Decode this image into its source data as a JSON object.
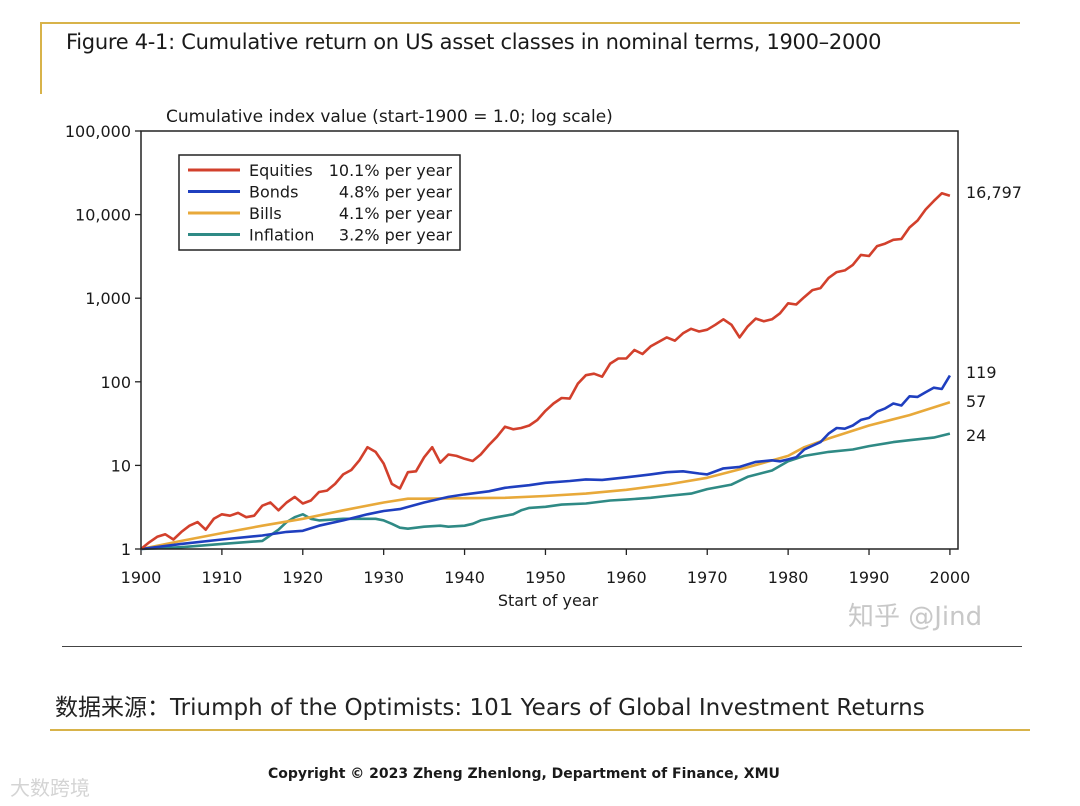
{
  "figure_title": "Figure 4-1: Cumulative return on US asset classes in nominal terms, 1900–2000",
  "source_note": "数据来源：Triumph of the Optimists: 101 Years of Global Investment Returns",
  "copyright": "Copyright © 2023 Zheng Zhenlong, Department of Finance,  XMU",
  "watermarks": {
    "zhihu": "知乎 @Jind",
    "bottom_left": "大数跨境"
  },
  "chart_data": {
    "type": "line",
    "title": "Figure 4-1: Cumulative return on US asset classes in nominal terms, 1900–2000",
    "ylabel": "Cumulative index value (start-1900 = 1.0; log scale)",
    "xlabel": "Start of year",
    "yscale": "log",
    "ylim": [
      1,
      100000
    ],
    "xlim": [
      1900,
      2001
    ],
    "x_ticks": [
      1900,
      1910,
      1920,
      1930,
      1940,
      1950,
      1960,
      1970,
      1980,
      1990,
      2000
    ],
    "y_ticks": [
      1,
      10,
      100,
      1000,
      10000,
      100000
    ],
    "y_tick_labels": [
      "1",
      "10",
      "100",
      "1,000",
      "10,000",
      "100,000"
    ],
    "legend_position": "top-left",
    "series": [
      {
        "name": "Equities",
        "rate": "10.1% per year",
        "color": "#d2402c",
        "end_label": "16,797",
        "points": [
          [
            1900,
            1
          ],
          [
            1901,
            1.2
          ],
          [
            1902,
            1.4
          ],
          [
            1903,
            1.5
          ],
          [
            1904,
            1.3
          ],
          [
            1905,
            1.6
          ],
          [
            1906,
            1.9
          ],
          [
            1907,
            2.1
          ],
          [
            1908,
            1.7
          ],
          [
            1909,
            2.3
          ],
          [
            1910,
            2.6
          ],
          [
            1911,
            2.5
          ],
          [
            1912,
            2.7
          ],
          [
            1913,
            2.4
          ],
          [
            1914,
            2.5
          ],
          [
            1915,
            3.3
          ],
          [
            1916,
            3.6
          ],
          [
            1917,
            2.9
          ],
          [
            1918,
            3.6
          ],
          [
            1919,
            4.2
          ],
          [
            1920,
            3.5
          ],
          [
            1921,
            3.8
          ],
          [
            1922,
            4.8
          ],
          [
            1923,
            5.0
          ],
          [
            1924,
            6.0
          ],
          [
            1925,
            7.8
          ],
          [
            1926,
            8.8
          ],
          [
            1927,
            11.5
          ],
          [
            1928,
            16.5
          ],
          [
            1929,
            14.5
          ],
          [
            1930,
            10.5
          ],
          [
            1931,
            6.0
          ],
          [
            1932,
            5.3
          ],
          [
            1933,
            8.3
          ],
          [
            1934,
            8.5
          ],
          [
            1935,
            12.5
          ],
          [
            1936,
            16.5
          ],
          [
            1937,
            10.8
          ],
          [
            1938,
            13.5
          ],
          [
            1939,
            13.0
          ],
          [
            1940,
            12.0
          ],
          [
            1941,
            11.3
          ],
          [
            1942,
            13.5
          ],
          [
            1943,
            17.5
          ],
          [
            1944,
            22.0
          ],
          [
            1945,
            29.0
          ],
          [
            1946,
            27.0
          ],
          [
            1947,
            28.0
          ],
          [
            1948,
            30.0
          ],
          [
            1949,
            35.0
          ],
          [
            1950,
            45.0
          ],
          [
            1951,
            55.0
          ],
          [
            1952,
            64.0
          ],
          [
            1953,
            63.0
          ],
          [
            1954,
            95.0
          ],
          [
            1955,
            120.0
          ],
          [
            1956,
            125.0
          ],
          [
            1957,
            115.0
          ],
          [
            1958,
            165.0
          ],
          [
            1959,
            190.0
          ],
          [
            1960,
            190.0
          ],
          [
            1961,
            240.0
          ],
          [
            1962,
            215.0
          ],
          [
            1963,
            265.0
          ],
          [
            1964,
            300.0
          ],
          [
            1965,
            340.0
          ],
          [
            1966,
            310.0
          ],
          [
            1967,
            380.0
          ],
          [
            1968,
            430.0
          ],
          [
            1969,
            400.0
          ],
          [
            1970,
            420.0
          ],
          [
            1971,
            480.0
          ],
          [
            1972,
            560.0
          ],
          [
            1973,
            480.0
          ],
          [
            1974,
            340.0
          ],
          [
            1975,
            460.0
          ],
          [
            1976,
            570.0
          ],
          [
            1977,
            530.0
          ],
          [
            1978,
            560.0
          ],
          [
            1979,
            660.0
          ],
          [
            1980,
            870.0
          ],
          [
            1981,
            840.0
          ],
          [
            1982,
            1030.0
          ],
          [
            1983,
            1250.0
          ],
          [
            1984,
            1320.0
          ],
          [
            1985,
            1750.0
          ],
          [
            1986,
            2050.0
          ],
          [
            1987,
            2150.0
          ],
          [
            1988,
            2500.0
          ],
          [
            1989,
            3300.0
          ],
          [
            1990,
            3200.0
          ],
          [
            1991,
            4200.0
          ],
          [
            1992,
            4500.0
          ],
          [
            1993,
            5000.0
          ],
          [
            1994,
            5100.0
          ],
          [
            1995,
            7000.0
          ],
          [
            1996,
            8500.0
          ],
          [
            1997,
            11500.0
          ],
          [
            1998,
            14500.0
          ],
          [
            1999,
            18000.0
          ],
          [
            2000,
            16797.0
          ]
        ]
      },
      {
        "name": "Bonds",
        "rate": "4.8% per year",
        "color": "#1f3fbf",
        "end_label": "119",
        "points": [
          [
            1900,
            1
          ],
          [
            1905,
            1.15
          ],
          [
            1910,
            1.3
          ],
          [
            1915,
            1.45
          ],
          [
            1918,
            1.6
          ],
          [
            1920,
            1.65
          ],
          [
            1922,
            1.9
          ],
          [
            1925,
            2.2
          ],
          [
            1928,
            2.6
          ],
          [
            1930,
            2.85
          ],
          [
            1932,
            3.0
          ],
          [
            1935,
            3.6
          ],
          [
            1938,
            4.2
          ],
          [
            1940,
            4.5
          ],
          [
            1943,
            4.9
          ],
          [
            1945,
            5.4
          ],
          [
            1948,
            5.8
          ],
          [
            1950,
            6.2
          ],
          [
            1953,
            6.5
          ],
          [
            1955,
            6.8
          ],
          [
            1957,
            6.7
          ],
          [
            1960,
            7.2
          ],
          [
            1963,
            7.8
          ],
          [
            1965,
            8.3
          ],
          [
            1967,
            8.5
          ],
          [
            1969,
            8.0
          ],
          [
            1970,
            7.8
          ],
          [
            1972,
            9.2
          ],
          [
            1974,
            9.6
          ],
          [
            1976,
            11.0
          ],
          [
            1978,
            11.5
          ],
          [
            1979,
            11.2
          ],
          [
            1980,
            11.8
          ],
          [
            1981,
            12.5
          ],
          [
            1982,
            15.5
          ],
          [
            1984,
            19.0
          ],
          [
            1985,
            24.0
          ],
          [
            1986,
            28.0
          ],
          [
            1987,
            27.5
          ],
          [
            1988,
            30.0
          ],
          [
            1989,
            35.0
          ],
          [
            1990,
            37.0
          ],
          [
            1991,
            44.0
          ],
          [
            1992,
            48.0
          ],
          [
            1993,
            55.0
          ],
          [
            1994,
            52.0
          ],
          [
            1995,
            67.0
          ],
          [
            1996,
            66.0
          ],
          [
            1997,
            75.0
          ],
          [
            1998,
            85.0
          ],
          [
            1999,
            82.0
          ],
          [
            2000,
            119.0
          ]
        ]
      },
      {
        "name": "Bills",
        "rate": "4.1% per year",
        "color": "#e8a93a",
        "end_label": "57",
        "points": [
          [
            1900,
            1
          ],
          [
            1905,
            1.25
          ],
          [
            1910,
            1.55
          ],
          [
            1915,
            1.9
          ],
          [
            1920,
            2.3
          ],
          [
            1925,
            2.9
          ],
          [
            1930,
            3.6
          ],
          [
            1933,
            4.0
          ],
          [
            1935,
            4.0
          ],
          [
            1940,
            4.05
          ],
          [
            1945,
            4.1
          ],
          [
            1950,
            4.3
          ],
          [
            1955,
            4.6
          ],
          [
            1960,
            5.1
          ],
          [
            1965,
            5.9
          ],
          [
            1970,
            7.1
          ],
          [
            1975,
            9.5
          ],
          [
            1980,
            13.0
          ],
          [
            1982,
            16.5
          ],
          [
            1985,
            21.0
          ],
          [
            1990,
            30.0
          ],
          [
            1995,
            40.0
          ],
          [
            2000,
            57.0
          ]
        ]
      },
      {
        "name": "Inflation",
        "rate": "3.2% per year",
        "color": "#2f8a85",
        "end_label": "24",
        "points": [
          [
            1900,
            1
          ],
          [
            1905,
            1.05
          ],
          [
            1910,
            1.15
          ],
          [
            1915,
            1.25
          ],
          [
            1917,
            1.7
          ],
          [
            1918,
            2.1
          ],
          [
            1919,
            2.4
          ],
          [
            1920,
            2.6
          ],
          [
            1921,
            2.3
          ],
          [
            1922,
            2.2
          ],
          [
            1925,
            2.3
          ],
          [
            1929,
            2.3
          ],
          [
            1930,
            2.2
          ],
          [
            1931,
            2.0
          ],
          [
            1932,
            1.8
          ],
          [
            1933,
            1.75
          ],
          [
            1935,
            1.85
          ],
          [
            1937,
            1.9
          ],
          [
            1938,
            1.85
          ],
          [
            1940,
            1.9
          ],
          [
            1941,
            2.0
          ],
          [
            1942,
            2.2
          ],
          [
            1944,
            2.4
          ],
          [
            1946,
            2.6
          ],
          [
            1947,
            2.9
          ],
          [
            1948,
            3.1
          ],
          [
            1950,
            3.2
          ],
          [
            1952,
            3.4
          ],
          [
            1955,
            3.5
          ],
          [
            1958,
            3.8
          ],
          [
            1960,
            3.9
          ],
          [
            1963,
            4.1
          ],
          [
            1965,
            4.3
          ],
          [
            1968,
            4.6
          ],
          [
            1970,
            5.2
          ],
          [
            1973,
            5.9
          ],
          [
            1975,
            7.3
          ],
          [
            1978,
            8.7
          ],
          [
            1980,
            11.2
          ],
          [
            1982,
            13.0
          ],
          [
            1985,
            14.5
          ],
          [
            1988,
            15.5
          ],
          [
            1990,
            17.0
          ],
          [
            1993,
            19.0
          ],
          [
            1995,
            20.0
          ],
          [
            1998,
            21.5
          ],
          [
            2000,
            24.0
          ]
        ]
      }
    ]
  }
}
